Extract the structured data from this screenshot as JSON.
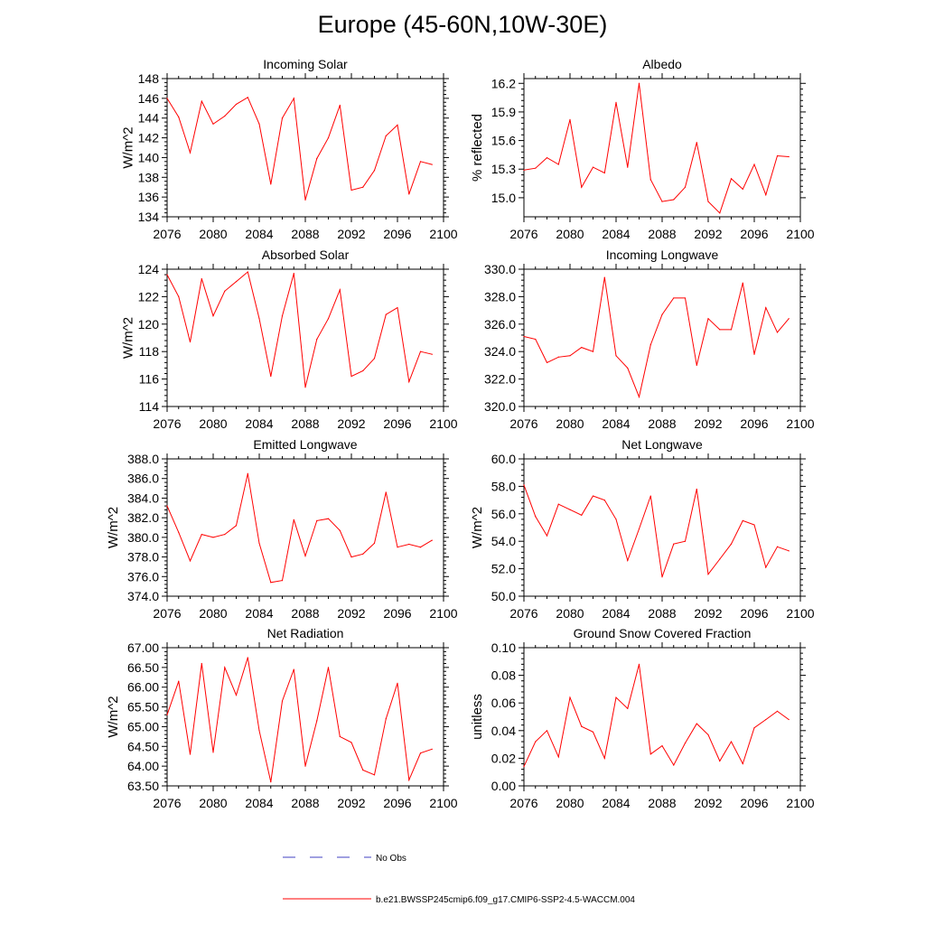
{
  "page_title": "Europe (45-60N,10W-30E)",
  "colors": {
    "model_line": "#ff0000",
    "obs_line": "#4040c0",
    "axis": "#000000"
  },
  "legend": {
    "obs_label": "No Obs",
    "model_label": "b.e21.BWSSP245cmip6.f09_g17.CMIP6-SSP2-4.5-WACCM.004"
  },
  "chart_data": [
    {
      "type": "line",
      "id": "incoming-solar",
      "title": "Incoming Solar",
      "ylabel": "W/m^2",
      "xlabel": "",
      "xlim": [
        2076,
        2100
      ],
      "xticks": [
        2076,
        2080,
        2084,
        2088,
        2092,
        2096,
        2100
      ],
      "ylim": [
        134,
        148
      ],
      "yticks": [
        134,
        136,
        138,
        140,
        142,
        144,
        146,
        148
      ],
      "ytick_labels": [
        "134",
        "136",
        "138",
        "140",
        "142",
        "144",
        "146",
        "148"
      ],
      "x": [
        2076,
        2077,
        2078,
        2079,
        2080,
        2081,
        2082,
        2083,
        2084,
        2085,
        2086,
        2087,
        2088,
        2089,
        2090,
        2091,
        2092,
        2093,
        2094,
        2095,
        2096,
        2097,
        2098,
        2099
      ],
      "series": [
        {
          "name": "b.e21.BWSSP245cmip6.f09_g17.CMIP6-SSP2-4.5-WACCM.004",
          "values": [
            146.0,
            144.1,
            140.5,
            145.7,
            143.4,
            144.2,
            145.4,
            146.1,
            143.4,
            137.3,
            144.0,
            146.0,
            135.7,
            139.9,
            142.0,
            145.3,
            136.7,
            137.0,
            138.7,
            142.2,
            143.3,
            136.3,
            139.6,
            139.3
          ]
        }
      ]
    },
    {
      "type": "line",
      "id": "albedo",
      "title": "Albedo",
      "ylabel": "% reflected",
      "xlabel": "",
      "xlim": [
        2076,
        2100
      ],
      "xticks": [
        2076,
        2080,
        2084,
        2088,
        2092,
        2096,
        2100
      ],
      "ylim": [
        14.8,
        16.25
      ],
      "yticks": [
        15.0,
        15.3,
        15.6,
        15.9,
        16.2
      ],
      "ytick_labels": [
        "15.0",
        "15.3",
        "15.6",
        "15.9",
        "16.2"
      ],
      "x": [
        2076,
        2077,
        2078,
        2079,
        2080,
        2081,
        2082,
        2083,
        2084,
        2085,
        2086,
        2087,
        2088,
        2089,
        2090,
        2091,
        2092,
        2093,
        2094,
        2095,
        2096,
        2097,
        2098,
        2099
      ],
      "series": [
        {
          "name": "b.e21.BWSSP245cmip6.f09_g17.CMIP6-SSP2-4.5-WACCM.004",
          "values": [
            15.29,
            15.31,
            15.42,
            15.35,
            15.82,
            15.11,
            15.32,
            15.26,
            16.0,
            15.32,
            16.2,
            15.19,
            14.96,
            14.98,
            15.11,
            15.58,
            14.96,
            14.84,
            15.2,
            15.09,
            15.35,
            15.03,
            15.44,
            15.43
          ]
        }
      ]
    },
    {
      "type": "line",
      "id": "absorbed-solar",
      "title": "Absorbed Solar",
      "ylabel": "W/m^2",
      "xlabel": "",
      "xlim": [
        2076,
        2100
      ],
      "xticks": [
        2076,
        2080,
        2084,
        2088,
        2092,
        2096,
        2100
      ],
      "ylim": [
        114,
        124
      ],
      "yticks": [
        114,
        116,
        118,
        120,
        122,
        124
      ],
      "ytick_labels": [
        "114",
        "116",
        "118",
        "120",
        "122",
        "124"
      ],
      "x": [
        2076,
        2077,
        2078,
        2079,
        2080,
        2081,
        2082,
        2083,
        2084,
        2085,
        2086,
        2087,
        2088,
        2089,
        2090,
        2091,
        2092,
        2093,
        2094,
        2095,
        2096,
        2097,
        2098,
        2099
      ],
      "series": [
        {
          "name": "b.e21.BWSSP245cmip6.f09_g17.CMIP6-SSP2-4.5-WACCM.004",
          "values": [
            123.6,
            122.0,
            118.7,
            123.3,
            120.6,
            122.4,
            123.1,
            123.8,
            120.4,
            116.2,
            120.6,
            123.7,
            115.4,
            118.9,
            120.4,
            122.5,
            116.2,
            116.6,
            117.5,
            120.7,
            121.2,
            115.8,
            118.0,
            117.8
          ]
        }
      ]
    },
    {
      "type": "line",
      "id": "incoming-longwave",
      "title": "Incoming Longwave",
      "ylabel": "",
      "xlabel": "",
      "xlim": [
        2076,
        2100
      ],
      "xticks": [
        2076,
        2080,
        2084,
        2088,
        2092,
        2096,
        2100
      ],
      "ylim": [
        320,
        330
      ],
      "yticks": [
        320,
        322,
        324,
        326,
        328,
        330
      ],
      "ytick_labels": [
        "320.0",
        "322.0",
        "324.0",
        "326.0",
        "328.0",
        "330.0"
      ],
      "x": [
        2076,
        2077,
        2078,
        2079,
        2080,
        2081,
        2082,
        2083,
        2084,
        2085,
        2086,
        2087,
        2088,
        2089,
        2090,
        2091,
        2092,
        2093,
        2094,
        2095,
        2096,
        2097,
        2098,
        2099
      ],
      "series": [
        {
          "name": "b.e21.BWSSP245cmip6.f09_g17.CMIP6-SSP2-4.5-WACCM.004",
          "values": [
            325.1,
            324.9,
            323.2,
            323.6,
            323.7,
            324.3,
            324.0,
            329.4,
            323.7,
            322.8,
            320.7,
            324.5,
            326.7,
            327.9,
            327.9,
            323.0,
            326.4,
            325.6,
            325.6,
            329.0,
            323.8,
            327.2,
            325.4,
            326.4
          ]
        }
      ]
    },
    {
      "type": "line",
      "id": "emitted-longwave",
      "title": "Emitted Longwave",
      "ylabel": "W/m^2",
      "xlabel": "",
      "xlim": [
        2076,
        2100
      ],
      "xticks": [
        2076,
        2080,
        2084,
        2088,
        2092,
        2096,
        2100
      ],
      "ylim": [
        374,
        388
      ],
      "yticks": [
        374,
        376,
        378,
        380,
        382,
        384,
        386,
        388
      ],
      "ytick_labels": [
        "374.0",
        "376.0",
        "378.0",
        "380.0",
        "382.0",
        "384.0",
        "386.0",
        "388.0"
      ],
      "x": [
        2076,
        2077,
        2078,
        2079,
        2080,
        2081,
        2082,
        2083,
        2084,
        2085,
        2086,
        2087,
        2088,
        2089,
        2090,
        2091,
        2092,
        2093,
        2094,
        2095,
        2096,
        2097,
        2098,
        2099
      ],
      "series": [
        {
          "name": "b.e21.BWSSP245cmip6.f09_g17.CMIP6-SSP2-4.5-WACCM.004",
          "values": [
            383.2,
            380.5,
            377.6,
            380.3,
            380.0,
            380.3,
            381.2,
            386.5,
            379.4,
            375.4,
            375.6,
            381.8,
            378.1,
            381.7,
            381.9,
            380.7,
            378.0,
            378.3,
            379.4,
            384.6,
            379.0,
            379.3,
            379.0,
            379.7
          ]
        }
      ]
    },
    {
      "type": "line",
      "id": "net-longwave",
      "title": "Net Longwave",
      "ylabel": "W/m^2",
      "xlabel": "",
      "xlim": [
        2076,
        2100
      ],
      "xticks": [
        2076,
        2080,
        2084,
        2088,
        2092,
        2096,
        2100
      ],
      "ylim": [
        50,
        60
      ],
      "yticks": [
        50,
        52,
        54,
        56,
        58,
        60
      ],
      "ytick_labels": [
        "50.0",
        "52.0",
        "54.0",
        "56.0",
        "58.0",
        "60.0"
      ],
      "x": [
        2076,
        2077,
        2078,
        2079,
        2080,
        2081,
        2082,
        2083,
        2084,
        2085,
        2086,
        2087,
        2088,
        2089,
        2090,
        2091,
        2092,
        2093,
        2094,
        2095,
        2096,
        2097,
        2098,
        2099
      ],
      "series": [
        {
          "name": "b.e21.BWSSP245cmip6.f09_g17.CMIP6-SSP2-4.5-WACCM.004",
          "values": [
            58.1,
            55.8,
            54.4,
            56.7,
            56.3,
            55.9,
            57.3,
            57.0,
            55.6,
            52.6,
            54.9,
            57.3,
            51.4,
            53.8,
            54.0,
            57.8,
            51.6,
            52.7,
            53.8,
            55.5,
            55.2,
            52.1,
            53.6,
            53.3
          ]
        }
      ]
    },
    {
      "type": "line",
      "id": "net-radiation",
      "title": "Net Radiation",
      "ylabel": "W/m^2",
      "xlabel": "",
      "xlim": [
        2076,
        2100
      ],
      "xticks": [
        2076,
        2080,
        2084,
        2088,
        2092,
        2096,
        2100
      ],
      "ylim": [
        63.5,
        67
      ],
      "yticks": [
        63.5,
        64,
        64.5,
        65,
        65.5,
        66,
        66.5,
        67
      ],
      "ytick_labels": [
        "63.50",
        "64.00",
        "64.50",
        "65.00",
        "65.50",
        "66.00",
        "66.50",
        "67.00"
      ],
      "x": [
        2076,
        2077,
        2078,
        2079,
        2080,
        2081,
        2082,
        2083,
        2084,
        2085,
        2086,
        2087,
        2088,
        2089,
        2090,
        2091,
        2092,
        2093,
        2094,
        2095,
        2096,
        2097,
        2098,
        2099
      ],
      "series": [
        {
          "name": "b.e21.BWSSP245cmip6.f09_g17.CMIP6-SSP2-4.5-WACCM.004",
          "values": [
            65.3,
            66.15,
            64.3,
            66.6,
            64.35,
            66.5,
            65.8,
            66.75,
            64.9,
            63.6,
            65.65,
            66.45,
            64.0,
            65.15,
            66.5,
            64.75,
            64.6,
            63.9,
            63.78,
            65.2,
            66.1,
            63.65,
            64.33,
            64.43
          ]
        }
      ]
    },
    {
      "type": "line",
      "id": "ground-snow-covered-fraction",
      "title": "Ground Snow Covered Fraction",
      "ylabel": "unitless",
      "xlabel": "",
      "xlim": [
        2076,
        2100
      ],
      "xticks": [
        2076,
        2080,
        2084,
        2088,
        2092,
        2096,
        2100
      ],
      "ylim": [
        0,
        0.1
      ],
      "yticks": [
        0,
        0.02,
        0.04,
        0.06,
        0.08,
        0.1
      ],
      "ytick_labels": [
        "0.00",
        "0.02",
        "0.04",
        "0.06",
        "0.08",
        "0.10"
      ],
      "x": [
        2076,
        2077,
        2078,
        2079,
        2080,
        2081,
        2082,
        2083,
        2084,
        2085,
        2086,
        2087,
        2088,
        2089,
        2090,
        2091,
        2092,
        2093,
        2094,
        2095,
        2096,
        2097,
        2098,
        2099
      ],
      "series": [
        {
          "name": "b.e21.BWSSP245cmip6.f09_g17.CMIP6-SSP2-4.5-WACCM.004",
          "values": [
            0.014,
            0.032,
            0.04,
            0.021,
            0.064,
            0.043,
            0.039,
            0.02,
            0.064,
            0.056,
            0.088,
            0.023,
            0.029,
            0.015,
            0.031,
            0.045,
            0.037,
            0.018,
            0.032,
            0.016,
            0.042,
            0.048,
            0.054,
            0.048
          ]
        }
      ]
    }
  ]
}
